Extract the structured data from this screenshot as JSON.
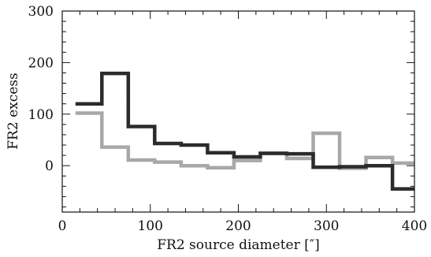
{
  "chart_data": {
    "type": "line",
    "title": "",
    "xlabel": "FR2 source diameter [″]",
    "ylabel": "FR2 excess",
    "xlim": [
      0,
      400
    ],
    "ylim": [
      -90,
      300
    ],
    "x_ticks": [
      0,
      100,
      200,
      300,
      400
    ],
    "y_ticks": [
      0,
      100,
      200,
      300
    ],
    "x_tick_labels": [
      "0",
      "100",
      "200",
      "300",
      "400"
    ],
    "y_tick_labels": [
      "0",
      "100",
      "200",
      "300"
    ],
    "grid": false,
    "legend": null,
    "style": "step",
    "series": [
      {
        "color": "#2b2b2b",
        "bin_edges": [
          15,
          45,
          75,
          105,
          135,
          165,
          195,
          225,
          255,
          285,
          315,
          345,
          375,
          400
        ],
        "values": [
          120,
          179,
          76,
          43,
          40,
          25,
          17,
          24,
          23,
          -3,
          -2,
          0,
          -45
        ]
      },
      {
        "color": "#a8a8a8",
        "bin_edges": [
          15,
          45,
          75,
          105,
          135,
          165,
          195,
          225,
          255,
          285,
          315,
          345,
          375,
          400
        ],
        "values": [
          102,
          36,
          11,
          7,
          0,
          -4,
          10,
          24,
          14,
          63,
          -5,
          16,
          5
        ]
      }
    ]
  }
}
